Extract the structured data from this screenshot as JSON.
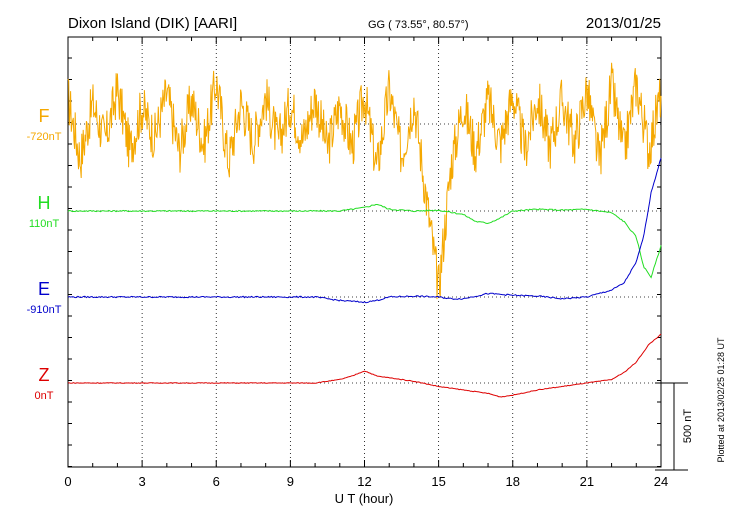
{
  "header": {
    "station": "Dixon Island (DIK)  [AARI]",
    "coords": "GG ( 73.55°,  80.57°)",
    "date": "2013/01/25"
  },
  "footer": {
    "plotted": "Plotted at 2013/02/25 01:28 UT"
  },
  "chart_data": {
    "type": "line",
    "xlabel": "U T (hour)",
    "xlim": [
      0,
      24
    ],
    "xticks": [
      "0",
      "3",
      "6",
      "9",
      "12",
      "15",
      "18",
      "21",
      "24"
    ],
    "scale_bar": {
      "label": "500 nT",
      "value": 500
    },
    "series": [
      {
        "name": "F",
        "baseline": "-720nT",
        "color": "#f5a800",
        "x": [
          0,
          0.5,
          1,
          1.5,
          2,
          2.5,
          3,
          3.5,
          4,
          4.5,
          5,
          5.5,
          6,
          6.5,
          7,
          7.5,
          8,
          8.5,
          9,
          9.5,
          10,
          10.5,
          11,
          11.5,
          12,
          12.5,
          13,
          13.5,
          14,
          14.5,
          15,
          15.5,
          16,
          16.5,
          17,
          17.5,
          18,
          18.5,
          19,
          19.5,
          20,
          20.5,
          21,
          21.5,
          22,
          22.5,
          23,
          23.5,
          24
        ],
        "y": [
          150,
          -200,
          120,
          -100,
          200,
          -150,
          100,
          -80,
          180,
          -160,
          140,
          -120,
          250,
          -220,
          130,
          -100,
          160,
          -110,
          120,
          -90,
          150,
          -140,
          110,
          -130,
          170,
          -260,
          200,
          -180,
          140,
          -420,
          -950,
          -240,
          120,
          -160,
          140,
          -120,
          170,
          -150,
          150,
          -130,
          140,
          -110,
          200,
          -220,
          220,
          -170,
          240,
          -150,
          180
        ]
      },
      {
        "name": "H",
        "baseline": "110nT",
        "color": "#22dd22",
        "x": [
          0,
          2,
          4,
          6,
          8,
          9,
          10,
          11,
          12,
          12.5,
          13,
          14,
          15,
          16,
          16.5,
          17,
          17.5,
          18,
          19,
          20,
          21,
          22,
          22.5,
          23,
          23.3,
          23.6,
          24
        ],
        "y": [
          0,
          0,
          0,
          0,
          0,
          0,
          0,
          0,
          20,
          40,
          10,
          0,
          5,
          -20,
          -60,
          -70,
          -40,
          0,
          10,
          5,
          10,
          -10,
          -60,
          -150,
          -320,
          -380,
          -200
        ]
      },
      {
        "name": "E",
        "baseline": "-910nT",
        "color": "#0000cc",
        "x": [
          0,
          2,
          4,
          6,
          8,
          9,
          10,
          11,
          12,
          12.5,
          13,
          14,
          15,
          15.5,
          16,
          17,
          18,
          19,
          20,
          21,
          22,
          22.5,
          23,
          23.3,
          23.6,
          24
        ],
        "y": [
          0,
          0,
          0,
          0,
          0,
          0,
          0,
          -20,
          -30,
          -20,
          0,
          5,
          0,
          -10,
          -10,
          20,
          10,
          5,
          -10,
          0,
          40,
          80,
          200,
          350,
          600,
          800
        ]
      },
      {
        "name": "Z",
        "baseline": "0nT",
        "color": "#dd0000",
        "x": [
          0,
          2,
          4,
          6,
          8,
          9,
          10,
          11,
          11.5,
          12,
          12.5,
          13,
          14,
          15,
          16,
          17,
          17.5,
          18,
          19,
          20,
          21,
          22,
          22.5,
          23,
          23.5,
          24
        ],
        "y": [
          0,
          0,
          0,
          0,
          0,
          0,
          0,
          20,
          40,
          70,
          40,
          30,
          10,
          -20,
          -40,
          -60,
          -80,
          -70,
          -40,
          -20,
          0,
          20,
          60,
          120,
          220,
          280
        ]
      }
    ]
  }
}
